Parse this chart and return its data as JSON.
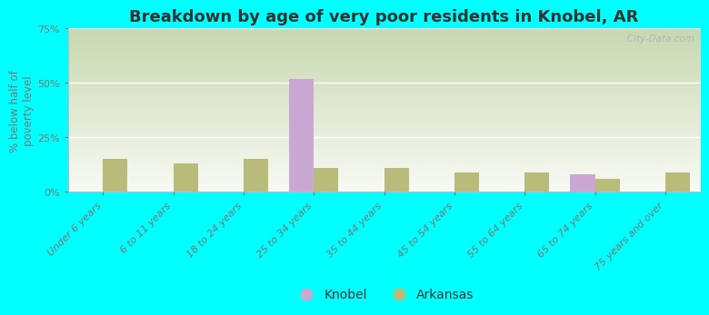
{
  "title": "Breakdown by age of very poor residents in Knobel, AR",
  "ylabel": "% below half of\npoverty level",
  "categories": [
    "Under 6 years",
    "6 to 11 years",
    "18 to 24 years",
    "25 to 34 years",
    "35 to 44 years",
    "45 to 54 years",
    "55 to 64 years",
    "65 to 74 years",
    "75 years and over"
  ],
  "knobel_values": [
    0,
    0,
    0,
    52,
    0,
    0,
    0,
    8,
    0
  ],
  "arkansas_values": [
    15,
    13,
    15,
    11,
    11,
    9,
    9,
    6,
    9
  ],
  "knobel_color": "#c9a8d4",
  "arkansas_color": "#b8bb7a",
  "background_color": "#00ffff",
  "plot_bg_gradient_top": "#c8d8b0",
  "plot_bg_gradient_bottom": "#f8faf4",
  "ylim": [
    0,
    75
  ],
  "yticks": [
    0,
    25,
    50,
    75
  ],
  "ytick_labels": [
    "0%",
    "25%",
    "50%",
    "75%"
  ],
  "bar_width": 0.35,
  "title_fontsize": 13,
  "axis_label_fontsize": 8.5,
  "tick_fontsize": 8,
  "legend_fontsize": 10,
  "watermark": "   City-Data.com"
}
